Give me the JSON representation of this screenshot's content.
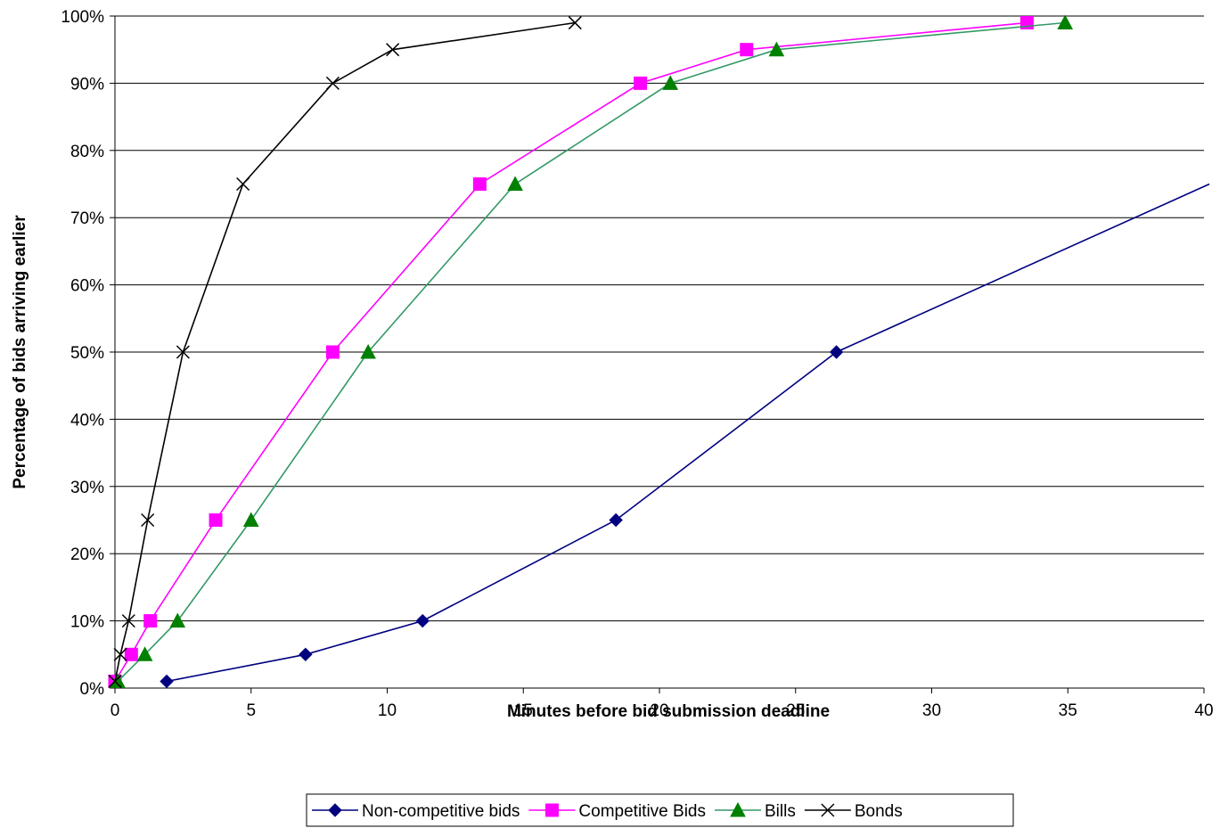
{
  "chart_data": {
    "type": "line",
    "title": "",
    "xlabel": "Minutes before bid submission deadline",
    "ylabel": "Percentage of bids arriving earlier",
    "xlim": [
      0,
      40
    ],
    "ylim": [
      0,
      100
    ],
    "x_ticks": [
      0,
      5,
      10,
      15,
      20,
      25,
      30,
      35,
      40
    ],
    "x_tick_labels": [
      "0",
      "5",
      "10",
      "15",
      "20",
      "25",
      "30",
      "35",
      "40"
    ],
    "y_ticks": [
      0,
      10,
      20,
      30,
      40,
      50,
      60,
      70,
      80,
      90,
      100
    ],
    "y_tick_labels": [
      "0%",
      "10%",
      "20%",
      "30%",
      "40%",
      "50%",
      "60%",
      "70%",
      "80%",
      "90%",
      "100%"
    ],
    "grid": "horizontal",
    "legend_position": "bottom",
    "series": [
      {
        "name": "Non-competitive bids",
        "color": "#000080",
        "marker": "diamond",
        "points": [
          [
            1.9,
            1
          ],
          [
            7.0,
            5
          ],
          [
            11.3,
            10
          ],
          [
            18.4,
            25
          ],
          [
            26.5,
            50
          ],
          [
            40.2,
            75
          ]
        ]
      },
      {
        "name": "Competitive Bids",
        "color": "#FF00FF",
        "marker": "square",
        "points": [
          [
            0.0,
            1
          ],
          [
            0.6,
            5
          ],
          [
            1.3,
            10
          ],
          [
            3.7,
            25
          ],
          [
            8.0,
            50
          ],
          [
            13.4,
            75
          ],
          [
            19.3,
            90
          ],
          [
            23.2,
            95
          ],
          [
            33.5,
            99
          ]
        ]
      },
      {
        "name": "Bills",
        "color": "#008000",
        "marker": "triangle",
        "line_color": "#339966",
        "points": [
          [
            0.1,
            1
          ],
          [
            1.1,
            5
          ],
          [
            2.3,
            10
          ],
          [
            5.0,
            25
          ],
          [
            9.3,
            50
          ],
          [
            14.7,
            75
          ],
          [
            20.4,
            90
          ],
          [
            24.3,
            95
          ],
          [
            34.9,
            99
          ]
        ]
      },
      {
        "name": "Bonds",
        "color": "#000000",
        "marker": "x",
        "points": [
          [
            0.0,
            1
          ],
          [
            0.2,
            5
          ],
          [
            0.5,
            10
          ],
          [
            1.2,
            25
          ],
          [
            2.5,
            50
          ],
          [
            4.7,
            75
          ],
          [
            8.0,
            90
          ],
          [
            10.2,
            95
          ],
          [
            16.9,
            99
          ]
        ]
      }
    ]
  }
}
